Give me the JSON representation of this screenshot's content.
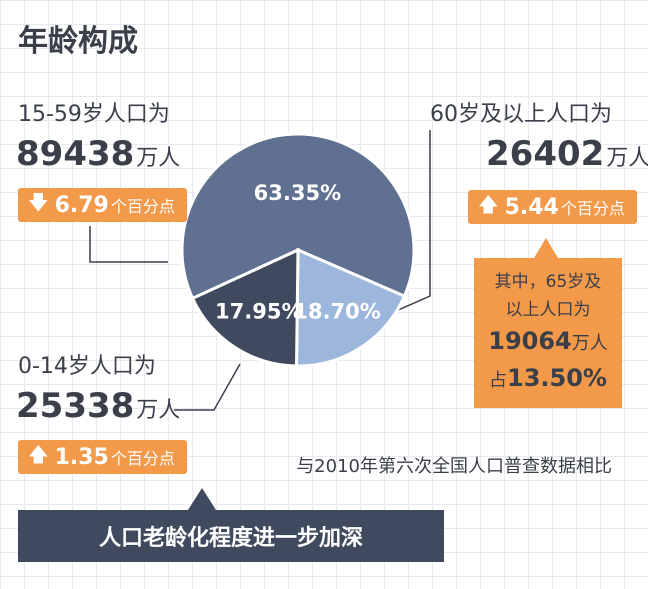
{
  "title": "年龄构成",
  "groups": {
    "g15_59": {
      "label": "15-59岁人口为",
      "value": "89438",
      "unit": "万人",
      "arrow": "down",
      "change": "6.79",
      "change_unit": "个百分点"
    },
    "g60": {
      "label": "60岁及以上人口为",
      "value": "26402",
      "unit": "万人",
      "arrow": "up",
      "change": "5.44",
      "change_unit": "个百分点"
    },
    "g0_14": {
      "label": "0-14岁人口为",
      "value": "25338",
      "unit": "万人",
      "arrow": "up",
      "change": "1.35",
      "change_unit": "个百分点"
    }
  },
  "callout": {
    "l1": "其中，65岁及",
    "l2": "以上人口为",
    "value": "19064",
    "unit": "万人",
    "share_prefix": "占",
    "share": "13.50%"
  },
  "footnote": "与2010年第六次全国人口普查数据相比",
  "banner": "人口老龄化程度进一步加深",
  "chart_data": {
    "type": "pie",
    "title": "",
    "slices": [
      {
        "label": "15-59岁",
        "value": 63.35,
        "display": "63.35%",
        "color": "#5f7090"
      },
      {
        "label": "60岁及以上",
        "value": 18.7,
        "display": "18.70%",
        "color": "#9db6dc"
      },
      {
        "label": "0-14岁",
        "value": 17.95,
        "display": "17.95%",
        "color": "#3f4a5e"
      }
    ],
    "legend": "none"
  },
  "colors": {
    "orange": "#f2994a",
    "navy": "#3f4a5e",
    "text": "#3a3f4a"
  }
}
